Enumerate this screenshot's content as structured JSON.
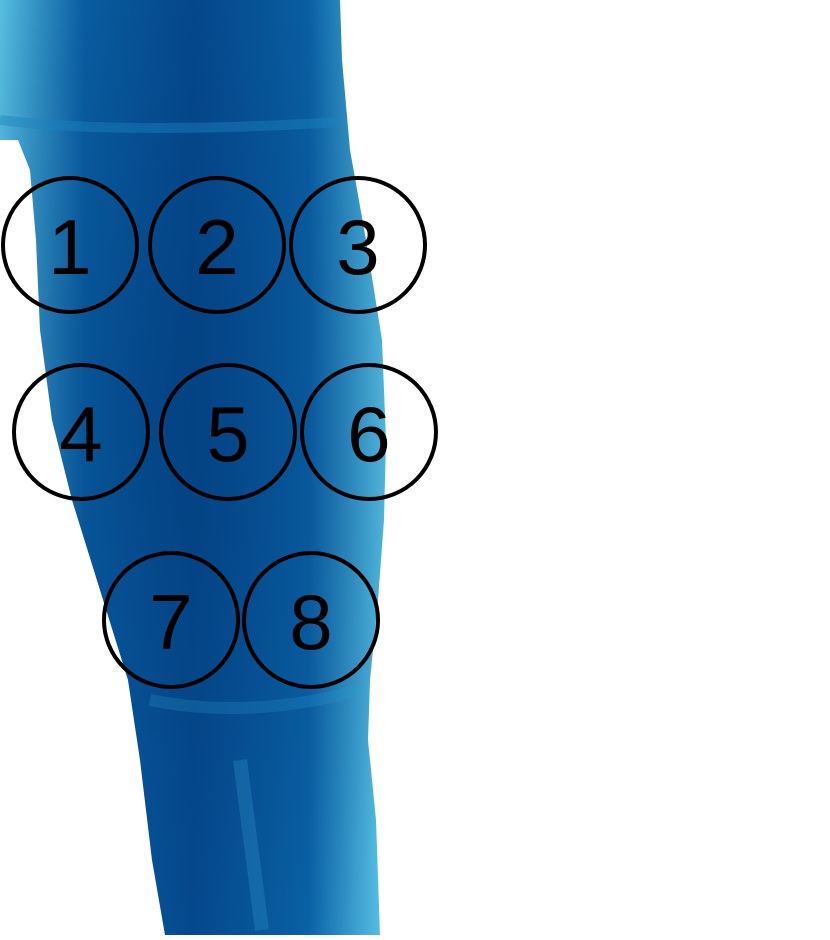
{
  "body_region": "leg",
  "colors": {
    "limb_dark": "#054b8f",
    "limb_mid": "#0a63a8",
    "limb_light": "#5bc6e6",
    "circle_stroke": "#000000",
    "background": "#ffffff"
  },
  "sites": [
    {
      "label": "1"
    },
    {
      "label": "2"
    },
    {
      "label": "3"
    },
    {
      "label": "4"
    },
    {
      "label": "5"
    },
    {
      "label": "6"
    },
    {
      "label": "7"
    },
    {
      "label": "8"
    }
  ]
}
